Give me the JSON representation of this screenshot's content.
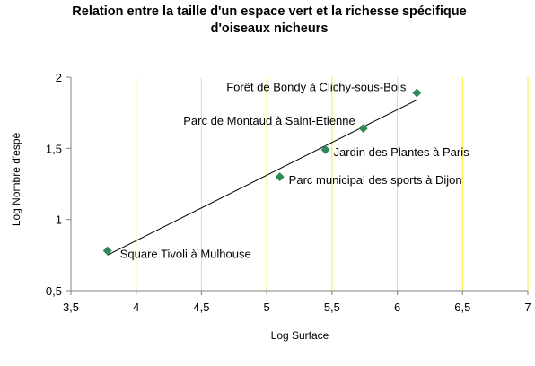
{
  "chart_data": {
    "type": "scatter",
    "title": "Relation entre la taille d'un espace vert et la richesse spécifique d'oiseaux nicheurs",
    "title_lines": [
      "Relation entre la taille d'un espace vert et la richesse spécifique",
      "d'oiseaux nicheurs"
    ],
    "xlabel": "Log Surface",
    "ylabel": "Log Nombre d'espè",
    "xlim": [
      3.5,
      7
    ],
    "ylim": [
      0.5,
      2
    ],
    "x_ticks": [
      3.5,
      4,
      4.5,
      5,
      5.5,
      6,
      6.5,
      7
    ],
    "y_ticks": [
      0.5,
      1,
      1.5,
      2
    ],
    "x_tick_labels": [
      "3,5",
      "4",
      "4,5",
      "5",
      "5,5",
      "6",
      "6,5",
      "7"
    ],
    "y_tick_labels": [
      "0,5",
      "1",
      "1,5",
      "2"
    ],
    "grid": "vertical",
    "legend": "none",
    "marker_color": "#2e8b57",
    "grid_color": "#f5ef2a",
    "trendline": {
      "x": [
        3.78,
        6.15
      ],
      "y": [
        0.75,
        1.84
      ]
    },
    "points": [
      {
        "label": "Square Tivoli à Mulhouse",
        "x": 3.78,
        "y": 0.78
      },
      {
        "label": "Parc municipal des sports à Dijon",
        "x": 5.1,
        "y": 1.3
      },
      {
        "label": "Jardin des Plantes à Paris",
        "x": 5.45,
        "y": 1.49
      },
      {
        "label": "Parc de Montaud à Saint-Etienne",
        "x": 5.74,
        "y": 1.64
      },
      {
        "label": "Forêt de Bondy à Clichy-sous-Bois",
        "x": 6.15,
        "y": 1.89
      }
    ]
  }
}
